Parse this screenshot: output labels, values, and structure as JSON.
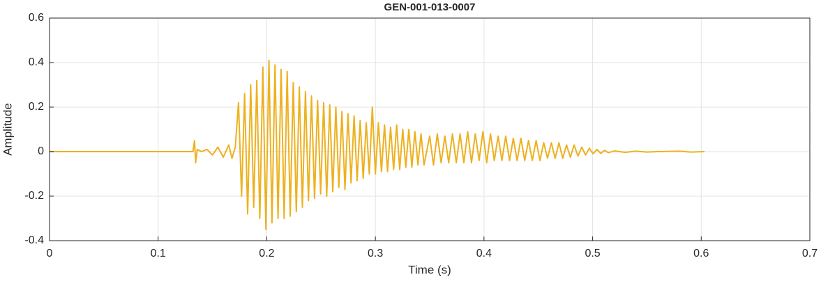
{
  "chart_data": {
    "type": "line",
    "title": "GEN-001-013-0007",
    "x_label": "Time (s)",
    "y_label": "Amplitude",
    "xlim": [
      0,
      0.7
    ],
    "ylim": [
      -0.4,
      0.6
    ],
    "xticks": [
      0,
      0.1,
      0.2,
      0.3,
      0.4,
      0.5,
      0.6,
      0.7
    ],
    "yticks": [
      -0.4,
      -0.2,
      0,
      0.2,
      0.4,
      0.6
    ],
    "grid": true,
    "series": [
      {
        "name": "Amplitude",
        "color": "#EDB120",
        "x": [
          0,
          0.132,
          0.1335,
          0.1345,
          0.136,
          0.14,
          0.145,
          0.15,
          0.155,
          0.16,
          0.165,
          0.168,
          0.171,
          0.174,
          0.1768,
          0.1796,
          0.1824,
          0.1852,
          0.188,
          0.1908,
          0.1936,
          0.1964,
          0.1992,
          0.202,
          0.2048,
          0.2076,
          0.2104,
          0.2132,
          0.216,
          0.2188,
          0.2216,
          0.2244,
          0.2272,
          0.23,
          0.2328,
          0.2356,
          0.2384,
          0.2412,
          0.244,
          0.2468,
          0.2496,
          0.2524,
          0.2552,
          0.258,
          0.2608,
          0.2636,
          0.2664,
          0.2692,
          0.272,
          0.2748,
          0.2776,
          0.2804,
          0.2832,
          0.286,
          0.2888,
          0.2916,
          0.2944,
          0.2972,
          0.3,
          0.3028,
          0.3056,
          0.3084,
          0.3112,
          0.314,
          0.3168,
          0.3196,
          0.3224,
          0.3252,
          0.328,
          0.3308,
          0.3336,
          0.3364,
          0.3392,
          0.342,
          0.3448,
          0.35,
          0.3535,
          0.357,
          0.3605,
          0.364,
          0.3675,
          0.371,
          0.3745,
          0.378,
          0.3815,
          0.385,
          0.3885,
          0.392,
          0.3955,
          0.399,
          0.4025,
          0.406,
          0.4095,
          0.413,
          0.4165,
          0.42,
          0.4235,
          0.427,
          0.4305,
          0.434,
          0.4375,
          0.441,
          0.4445,
          0.448,
          0.4515,
          0.455,
          0.4585,
          0.462,
          0.4655,
          0.469,
          0.4725,
          0.476,
          0.4795,
          0.483,
          0.4865,
          0.49,
          0.4935,
          0.497,
          0.5005,
          0.504,
          0.5075,
          0.511,
          0.5145,
          0.52,
          0.53,
          0.54,
          0.55,
          0.56,
          0.58,
          0.59,
          0.603
        ],
        "values": [
          0,
          0,
          0.05,
          -0.05,
          0.01,
          0,
          0.01,
          -0.015,
          0.02,
          -0.025,
          0.03,
          -0.03,
          0.02,
          0.22,
          -0.2,
          0.26,
          -0.28,
          0.3,
          -0.25,
          0.32,
          -0.3,
          0.38,
          -0.35,
          0.41,
          -0.32,
          0.39,
          -0.3,
          0.37,
          -0.3,
          0.36,
          -0.29,
          0.31,
          -0.27,
          0.29,
          -0.25,
          0.27,
          -0.22,
          0.25,
          -0.21,
          0.23,
          -0.19,
          0.22,
          -0.2,
          0.21,
          -0.18,
          0.2,
          -0.16,
          0.18,
          -0.17,
          0.17,
          -0.14,
          0.16,
          -0.13,
          0.14,
          -0.12,
          0.13,
          -0.1,
          0.2,
          -0.1,
          0.13,
          -0.09,
          0.12,
          -0.09,
          0.11,
          -0.08,
          0.12,
          -0.08,
          0.1,
          -0.07,
          0.1,
          -0.07,
          0.09,
          -0.06,
          0.08,
          -0.06,
          0.07,
          -0.06,
          0.08,
          -0.05,
          0.07,
          -0.05,
          0.08,
          -0.05,
          0.08,
          -0.05,
          0.09,
          -0.05,
          0.08,
          -0.04,
          0.09,
          -0.05,
          0.08,
          -0.04,
          0.07,
          -0.04,
          0.07,
          -0.04,
          0.06,
          -0.04,
          0.06,
          -0.04,
          0.05,
          -0.04,
          0.05,
          -0.04,
          0.04,
          -0.03,
          0.04,
          -0.03,
          0.04,
          -0.03,
          0.03,
          -0.025,
          0.03,
          -0.02,
          0.02,
          -0.015,
          0.015,
          -0.01,
          0.01,
          -0.008,
          0.006,
          -0.005,
          0.003,
          -0.003,
          0.002,
          -0.002,
          0,
          0.002,
          -0.002,
          0
        ]
      }
    ]
  }
}
